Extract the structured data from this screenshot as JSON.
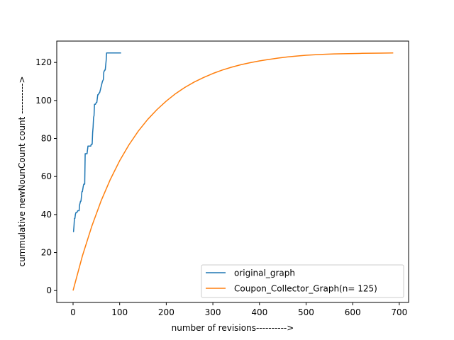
{
  "chart_data": {
    "type": "line",
    "xlabel": "number of revisions---------->",
    "ylabel": "cummulative newNounCount count ---------->",
    "xlim": [
      -35,
      720
    ],
    "ylim": [
      -6.25,
      131.25
    ],
    "xticks": [
      0,
      100,
      200,
      300,
      400,
      500,
      600,
      700
    ],
    "yticks": [
      0,
      20,
      40,
      60,
      80,
      100,
      120
    ],
    "grid": false,
    "legend_position": "lower-right",
    "series": [
      {
        "name": "original_graph",
        "color": "#1f77b4",
        "x": [
          0,
          1,
          2,
          3,
          4,
          5,
          6,
          8,
          10,
          11,
          13,
          14,
          16,
          17,
          19,
          20,
          22,
          23,
          25,
          26,
          27,
          28,
          30,
          32,
          33,
          35,
          36,
          38,
          39,
          41,
          42,
          43,
          44,
          45,
          46,
          47,
          48,
          50,
          51,
          53,
          54,
          56,
          57,
          59,
          60,
          62,
          63,
          65,
          66,
          68,
          69,
          71,
          72,
          74,
          75,
          77,
          78,
          80,
          82,
          84,
          86,
          88,
          90,
          95,
          100,
          103
        ],
        "y": [
          31,
          31,
          34,
          38,
          38,
          40,
          41,
          41,
          42,
          42,
          42,
          45,
          47,
          47,
          52,
          52,
          55,
          56,
          56,
          72,
          72,
          72,
          72,
          76,
          76,
          76,
          76,
          76,
          77,
          77,
          83,
          86,
          91,
          92,
          98,
          98,
          98,
          99,
          99,
          103,
          103,
          104,
          104,
          106,
          107,
          109,
          110,
          111,
          115,
          116,
          116,
          121,
          125,
          125,
          125,
          125,
          125,
          125,
          125,
          125,
          125,
          125,
          125,
          125,
          125,
          125
        ]
      },
      {
        "name": "Coupon_Collector_Graph(n= 125)",
        "color": "#ff7f0e",
        "x": [
          0,
          20,
          40,
          60,
          80,
          100,
          120,
          140,
          160,
          180,
          200,
          220,
          240,
          260,
          280,
          300,
          320,
          340,
          360,
          380,
          400,
          420,
          440,
          460,
          480,
          500,
          520,
          540,
          560,
          580,
          600,
          620,
          640,
          660,
          687
        ],
        "y": [
          0,
          18.2,
          33.7,
          47.1,
          58.5,
          68.3,
          76.7,
          83.9,
          90.0,
          95.2,
          99.7,
          103.6,
          106.9,
          109.7,
          112.1,
          114.2,
          116.0,
          117.5,
          118.8,
          119.9,
          120.8,
          121.6,
          122.3,
          122.9,
          123.4,
          123.8,
          124.1,
          124.3,
          124.5,
          124.6,
          124.7,
          124.8,
          124.85,
          124.9,
          125
        ]
      }
    ]
  }
}
